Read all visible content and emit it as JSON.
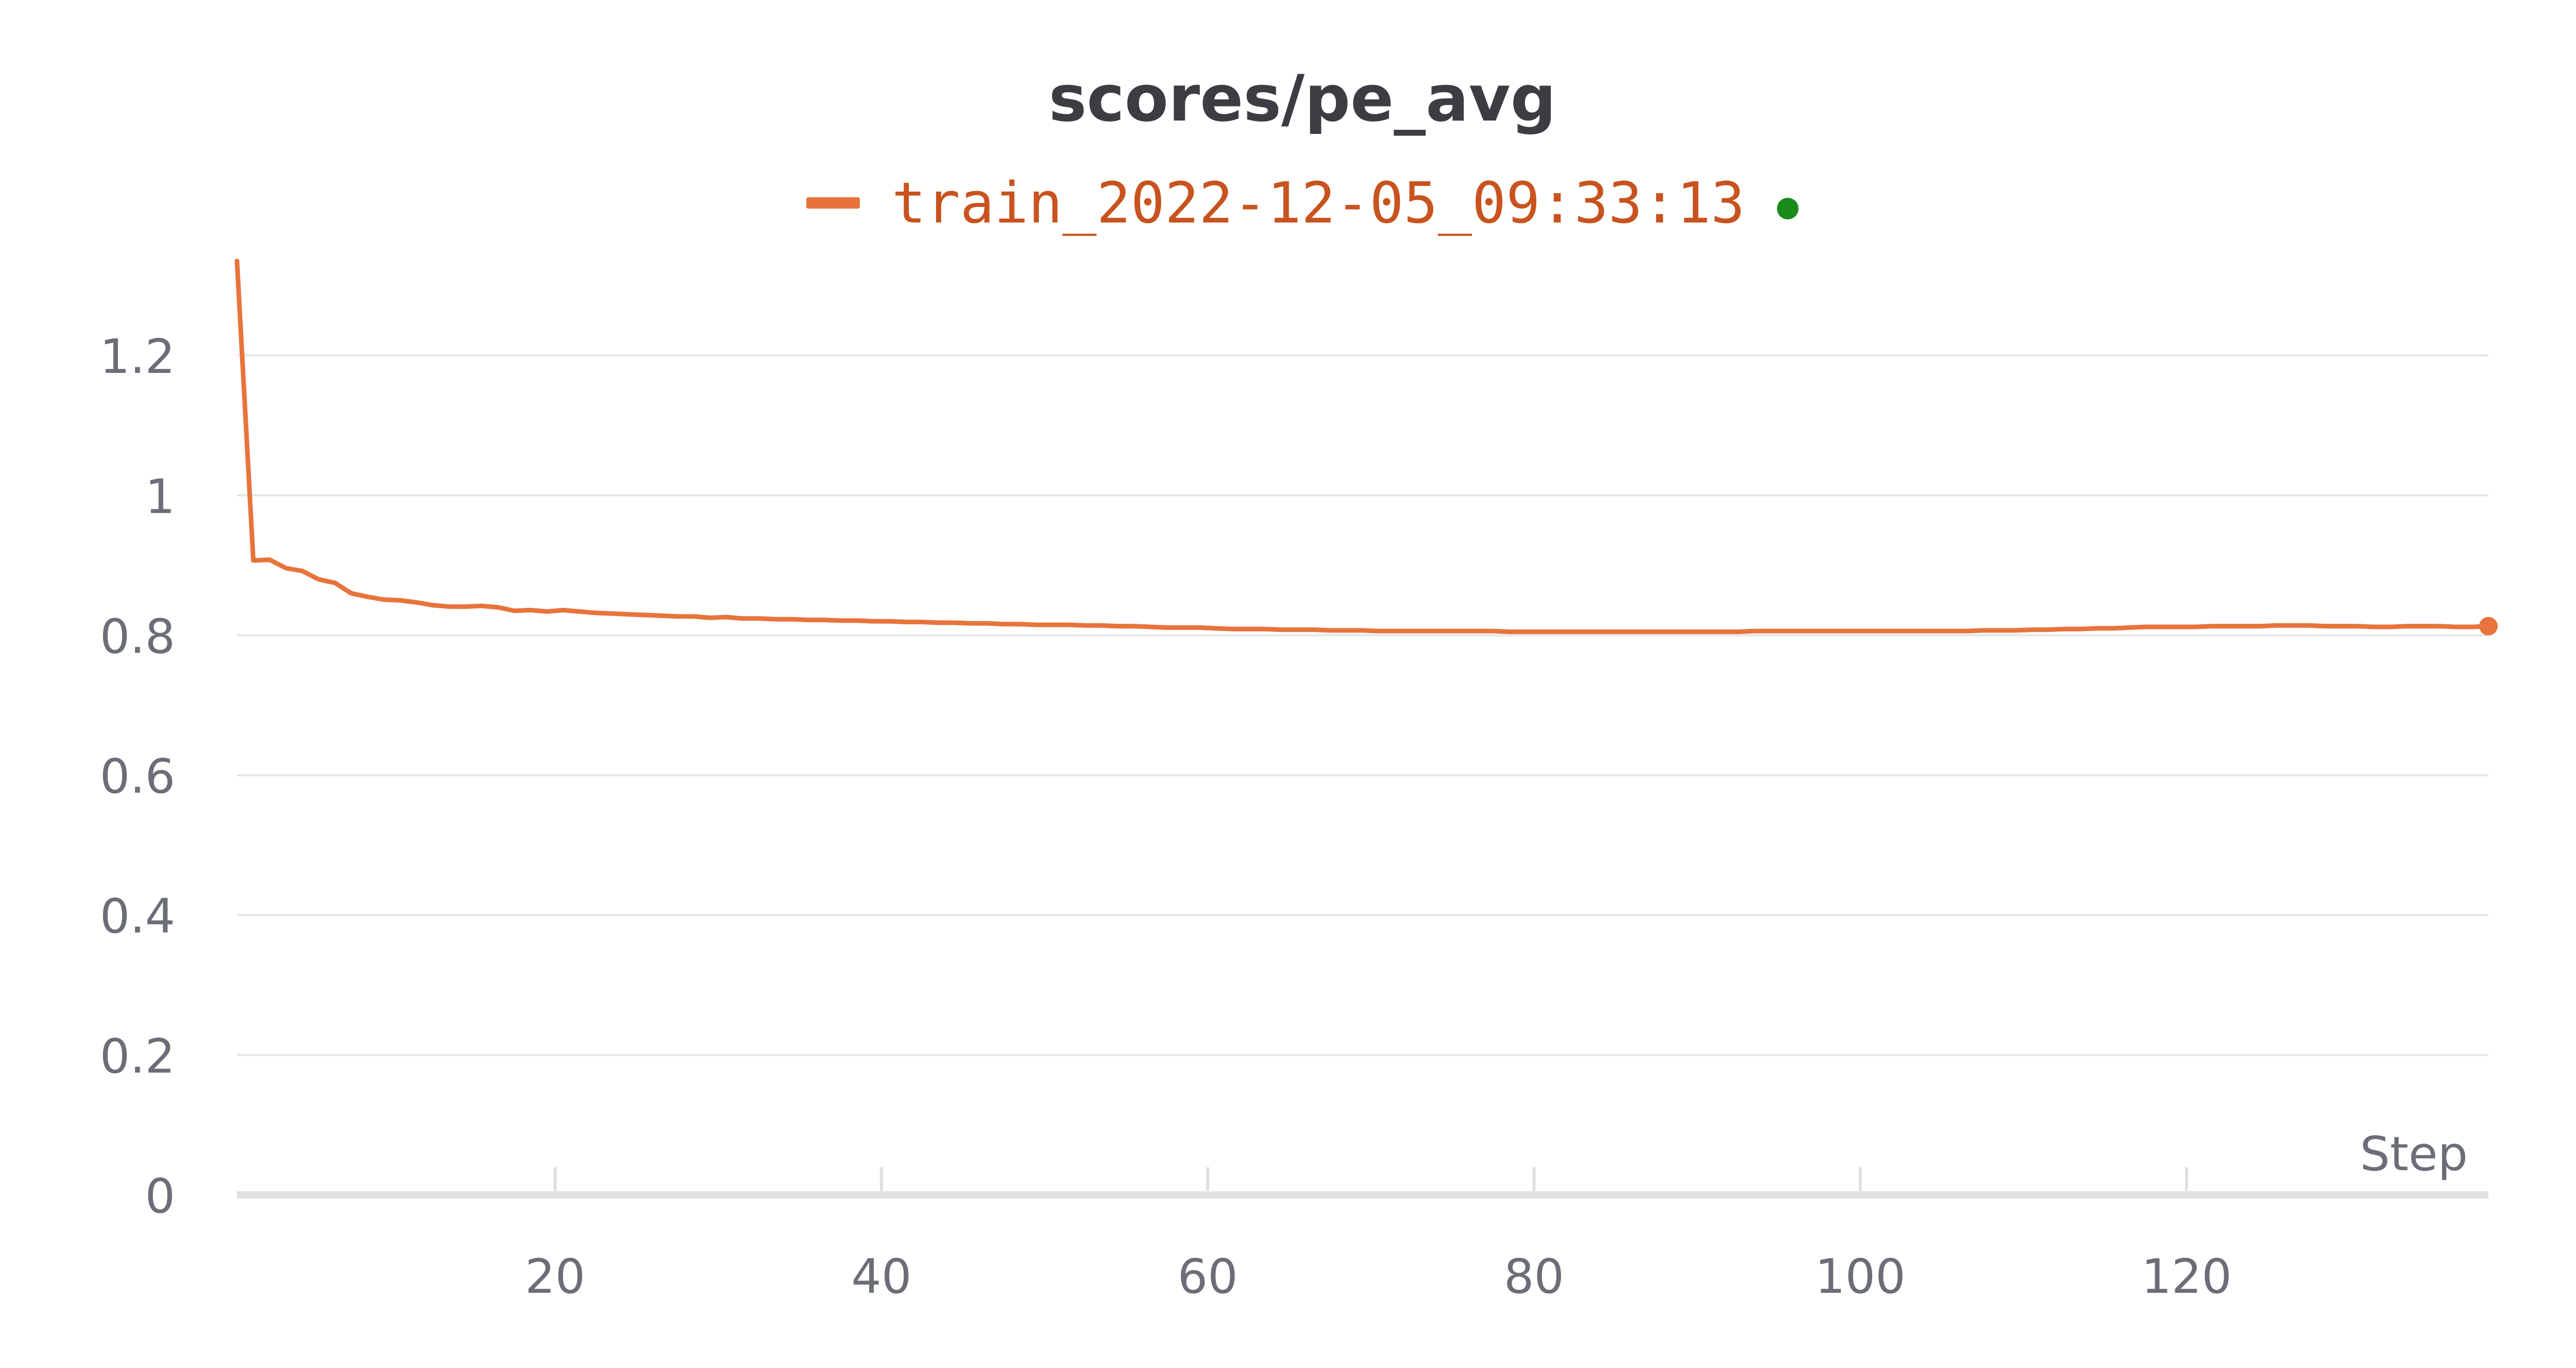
{
  "chart_data": {
    "type": "line",
    "title": "scores/pe_avg",
    "xlabel": "Step",
    "ylabel": "",
    "xlim": [
      0.5,
      138.5
    ],
    "ylim": [
      0,
      1.34
    ],
    "x_ticks": [
      20,
      40,
      60,
      80,
      100,
      120
    ],
    "y_ticks": [
      0,
      0.2,
      0.4,
      0.6,
      0.8,
      1,
      1.2
    ],
    "x_tick_labels": [
      "20",
      "40",
      "60",
      "80",
      "100",
      "120"
    ],
    "y_tick_labels": [
      "0",
      "0.2",
      "0.4",
      "0.6",
      "0.8",
      "1",
      "1.2"
    ],
    "grid": true,
    "legend": "top-center",
    "colors": {
      "line": "#e8743b",
      "legend_text": "#c8531e",
      "status_dot": "#1a8a1a",
      "title": "#3b3d42",
      "tick_text": "#6b6e76",
      "grid": "#e6e6e8",
      "axis": "#e0e0e2"
    },
    "series": [
      {
        "name": "train_2022-12-05_09:33:13",
        "x": [
          0.5,
          1.5,
          2.5,
          3.5,
          4.5,
          5.5,
          6.5,
          7.5,
          8.5,
          9.5,
          10.5,
          11.5,
          12.5,
          13.5,
          14.5,
          15.5,
          16.5,
          17.5,
          18.5,
          19.5,
          20.5,
          21.5,
          22.5,
          23.5,
          24.5,
          25.5,
          26.5,
          27.5,
          28.5,
          29.5,
          30.5,
          31.5,
          32.5,
          33.5,
          34.5,
          35.5,
          36.5,
          37.5,
          38.5,
          39.5,
          40.5,
          41.5,
          42.5,
          43.5,
          44.5,
          45.5,
          46.5,
          47.5,
          48.5,
          49.5,
          50.5,
          51.5,
          52.5,
          53.5,
          54.5,
          55.5,
          56.5,
          57.5,
          58.5,
          59.5,
          60.5,
          61.5,
          62.5,
          63.5,
          64.5,
          65.5,
          66.5,
          67.5,
          68.5,
          69.5,
          70.5,
          71.5,
          72.5,
          73.5,
          74.5,
          75.5,
          76.5,
          77.5,
          78.5,
          79.5,
          80.5,
          81.5,
          82.5,
          83.5,
          84.5,
          85.5,
          86.5,
          87.5,
          88.5,
          89.5,
          90.5,
          91.5,
          92.5,
          93.5,
          94.5,
          95.5,
          96.5,
          97.5,
          98.5,
          99.5,
          100.5,
          101.5,
          102.5,
          103.5,
          104.5,
          105.5,
          106.5,
          107.5,
          108.5,
          109.5,
          110.5,
          111.5,
          112.5,
          113.5,
          114.5,
          115.5,
          116.5,
          117.5,
          118.5,
          119.5,
          120.5,
          121.5,
          122.5,
          123.5,
          124.5,
          125.5,
          126.5,
          127.5,
          128.5,
          129.5,
          130.5,
          131.5,
          132.5,
          133.5,
          134.5,
          135.5,
          136.5,
          137.5,
          138.5
        ],
        "y": [
          1.335,
          0.907,
          0.908,
          0.896,
          0.892,
          0.88,
          0.875,
          0.86,
          0.855,
          0.851,
          0.85,
          0.847,
          0.843,
          0.841,
          0.841,
          0.842,
          0.84,
          0.835,
          0.836,
          0.834,
          0.836,
          0.834,
          0.832,
          0.831,
          0.83,
          0.829,
          0.828,
          0.827,
          0.827,
          0.825,
          0.826,
          0.824,
          0.824,
          0.823,
          0.823,
          0.822,
          0.822,
          0.821,
          0.821,
          0.82,
          0.82,
          0.819,
          0.819,
          0.818,
          0.818,
          0.817,
          0.817,
          0.816,
          0.816,
          0.815,
          0.815,
          0.815,
          0.814,
          0.814,
          0.813,
          0.813,
          0.812,
          0.811,
          0.811,
          0.811,
          0.81,
          0.809,
          0.809,
          0.809,
          0.808,
          0.808,
          0.808,
          0.807,
          0.807,
          0.807,
          0.806,
          0.806,
          0.806,
          0.806,
          0.806,
          0.806,
          0.806,
          0.806,
          0.805,
          0.805,
          0.805,
          0.805,
          0.805,
          0.805,
          0.805,
          0.805,
          0.805,
          0.805,
          0.805,
          0.805,
          0.805,
          0.805,
          0.805,
          0.806,
          0.806,
          0.806,
          0.806,
          0.806,
          0.806,
          0.806,
          0.806,
          0.806,
          0.806,
          0.806,
          0.806,
          0.806,
          0.806,
          0.807,
          0.807,
          0.807,
          0.808,
          0.808,
          0.809,
          0.809,
          0.81,
          0.81,
          0.811,
          0.812,
          0.812,
          0.812,
          0.812,
          0.813,
          0.813,
          0.813,
          0.813,
          0.814,
          0.814,
          0.814,
          0.813,
          0.813,
          0.813,
          0.812,
          0.812,
          0.813,
          0.813,
          0.813,
          0.812,
          0.812,
          0.813
        ]
      }
    ]
  }
}
